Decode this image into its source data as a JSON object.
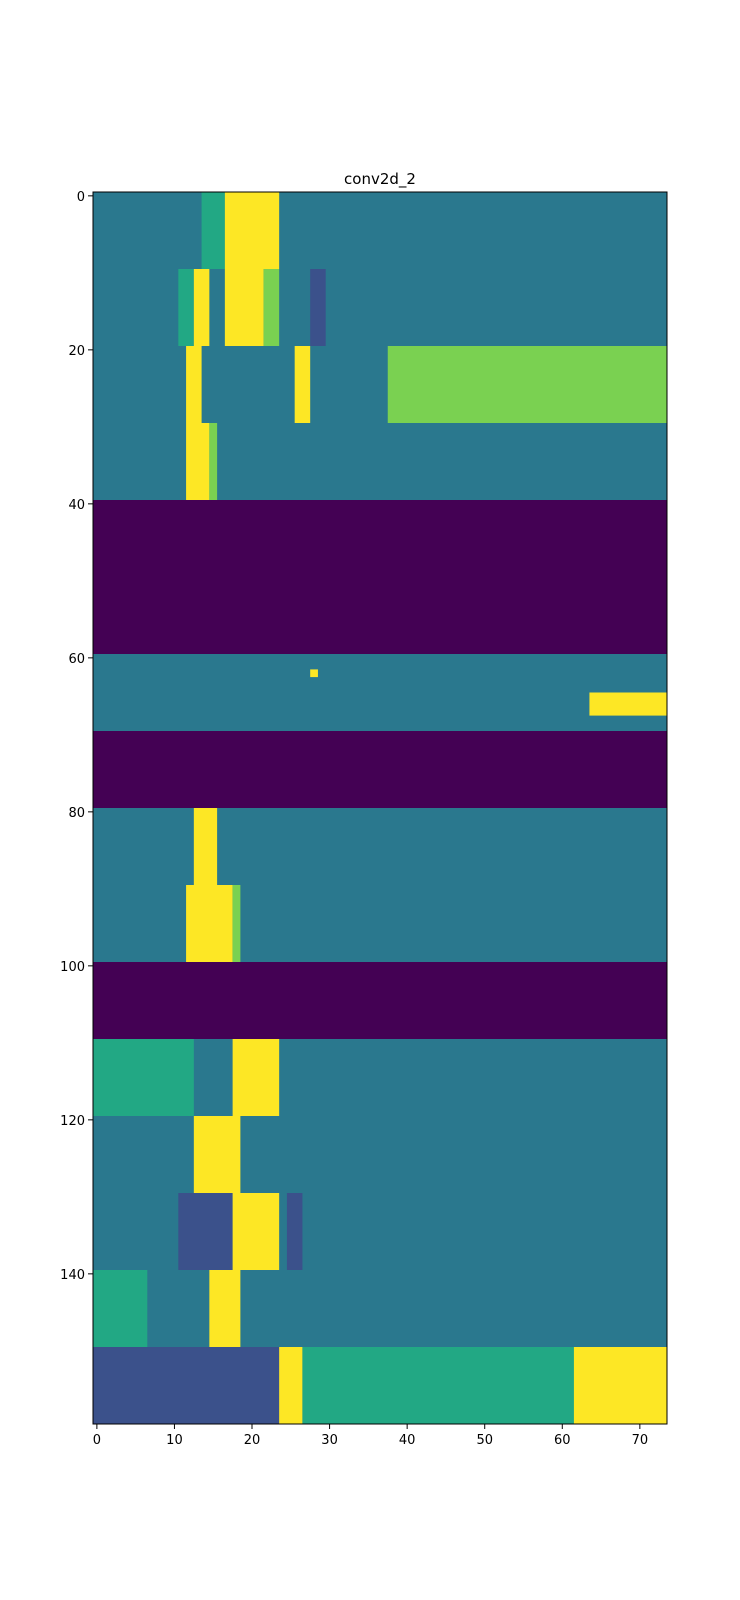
{
  "chart_data": {
    "type": "heatmap",
    "title": "conv2d_2",
    "xlabel": "",
    "ylabel": "",
    "colormap": "viridis",
    "xlim": [
      -0.5,
      73.5
    ],
    "ylim": [
      159.5,
      -0.5
    ],
    "grid": false,
    "x_ticks": [
      0,
      10,
      20,
      30,
      40,
      50,
      60,
      70
    ],
    "x_tick_labels": [
      "0",
      "10",
      "20",
      "30",
      "40",
      "50",
      "60",
      "70"
    ],
    "y_ticks": [
      0,
      20,
      40,
      60,
      80,
      100,
      120,
      140
    ],
    "y_tick_labels": [
      "0",
      "20",
      "40",
      "60",
      "80",
      "100",
      "120",
      "140"
    ],
    "colors": {
      "background": "#287d8e",
      "low": "#440154",
      "mid_low": "#3b518b",
      "mid": "#2a788e",
      "mid_high": "#22a884",
      "high": "#7ad151",
      "max": "#fde725"
    },
    "bands": [
      {
        "name": "band-0",
        "rows": [
          0,
          9
        ],
        "base": "mid",
        "regions": [
          {
            "cols": [
              14,
              16
            ],
            "level": "mid_high"
          },
          {
            "cols": [
              17,
              23
            ],
            "level": "max"
          }
        ]
      },
      {
        "name": "band-10",
        "rows": [
          10,
          19
        ],
        "base": "mid",
        "regions": [
          {
            "cols": [
              11,
              12
            ],
            "level": "mid_high"
          },
          {
            "cols": [
              13,
              14
            ],
            "level": "max"
          },
          {
            "cols": [
              17,
              21
            ],
            "level": "max"
          },
          {
            "cols": [
              22,
              23
            ],
            "level": "high"
          },
          {
            "cols": [
              28,
              29
            ],
            "level": "mid_low"
          }
        ]
      },
      {
        "name": "band-20",
        "rows": [
          20,
          29
        ],
        "base": "mid",
        "regions": [
          {
            "cols": [
              12,
              13
            ],
            "level": "max"
          },
          {
            "cols": [
              26,
              27
            ],
            "level": "max"
          },
          {
            "cols": [
              38,
              73
            ],
            "level": "high",
            "note": "diagonal streak"
          }
        ]
      },
      {
        "name": "band-30",
        "rows": [
          30,
          39
        ],
        "base": "mid",
        "regions": [
          {
            "cols": [
              12,
              14
            ],
            "level": "max"
          },
          {
            "cols": [
              15,
              15
            ],
            "level": "high"
          }
        ]
      },
      {
        "name": "band-40",
        "rows": [
          40,
          59
        ],
        "base": "low",
        "regions": []
      },
      {
        "name": "band-60",
        "rows": [
          60,
          69
        ],
        "base": "mid",
        "regions": [
          {
            "cols": [
              28,
              28
            ],
            "rows": [
              62,
              62
            ],
            "level": "max"
          },
          {
            "cols": [
              64,
              73
            ],
            "rows": [
              65,
              67
            ],
            "level": "max"
          }
        ]
      },
      {
        "name": "band-70",
        "rows": [
          70,
          79
        ],
        "base": "low",
        "regions": []
      },
      {
        "name": "band-80",
        "rows": [
          80,
          89
        ],
        "base": "mid",
        "regions": [
          {
            "cols": [
              13,
              15
            ],
            "level": "max"
          }
        ]
      },
      {
        "name": "band-90",
        "rows": [
          90,
          99
        ],
        "base": "mid",
        "regions": [
          {
            "cols": [
              12,
              17
            ],
            "level": "max"
          },
          {
            "cols": [
              18,
              18
            ],
            "level": "high"
          }
        ]
      },
      {
        "name": "band-100",
        "rows": [
          100,
          109
        ],
        "base": "low",
        "regions": []
      },
      {
        "name": "band-110",
        "rows": [
          110,
          119
        ],
        "base": "mid",
        "regions": [
          {
            "cols": [
              0,
              12
            ],
            "level": "mid_high"
          },
          {
            "cols": [
              18,
              23
            ],
            "level": "max"
          }
        ]
      },
      {
        "name": "band-120",
        "rows": [
          120,
          129
        ],
        "base": "mid",
        "regions": [
          {
            "cols": [
              13,
              18
            ],
            "level": "max"
          }
        ]
      },
      {
        "name": "band-130",
        "rows": [
          130,
          139
        ],
        "base": "mid",
        "regions": [
          {
            "cols": [
              11,
              17
            ],
            "level": "mid_low"
          },
          {
            "cols": [
              18,
              23
            ],
            "level": "max"
          },
          {
            "cols": [
              25,
              26
            ],
            "level": "mid_low"
          }
        ]
      },
      {
        "name": "band-140",
        "rows": [
          140,
          149
        ],
        "base": "mid",
        "regions": [
          {
            "cols": [
              0,
              6
            ],
            "level": "mid_high"
          },
          {
            "cols": [
              15,
              18
            ],
            "level": "max"
          }
        ]
      },
      {
        "name": "band-150",
        "rows": [
          150,
          159
        ],
        "base": "mid_low",
        "regions": [
          {
            "cols": [
              24,
              26
            ],
            "level": "max"
          },
          {
            "cols": [
              27,
              73
            ],
            "level": "mid_high",
            "note": "noisy bright streaks"
          },
          {
            "cols": [
              62,
              73
            ],
            "level": "max"
          }
        ]
      }
    ]
  }
}
